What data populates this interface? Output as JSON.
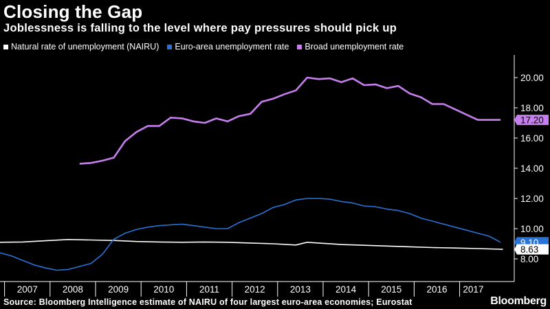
{
  "header": {
    "title": "Closing the Gap",
    "subtitle": "Joblessness is falling to the level where pay pressures should pick up"
  },
  "footer": {
    "source": "Source: Bloomberg Intelligence estimate of NAIRU of four largest euro-area economies; Eurostat",
    "brand": "Bloomberg"
  },
  "chart_data": {
    "type": "line",
    "title": "Closing the Gap",
    "subtitle": "Joblessness is falling to the level where pay pressures should pick up",
    "xlabel": "",
    "ylabel": "",
    "x_range": [
      2006,
      2017.3
    ],
    "ylim": [
      6.5,
      21.5
    ],
    "y_ticks": [
      8.0,
      10.0,
      12.0,
      14.0,
      16.0,
      18.0,
      20.0
    ],
    "y_tick_labels": [
      "8.00",
      "10.00",
      "12.00",
      "14.00",
      "16.00",
      "18.00",
      "20.00"
    ],
    "x_tick_labels": [
      "2007",
      "2008",
      "2009",
      "2010",
      "2011",
      "2012",
      "2013",
      "2014",
      "2015",
      "2016",
      "2017"
    ],
    "x_tick_centers": [
      2006.6,
      2007.6,
      2008.6,
      2009.6,
      2010.6,
      2011.6,
      2012.6,
      2013.6,
      2014.6,
      2015.6,
      2016.4
    ],
    "x_dividers": [
      2006.1,
      2007.1,
      2008.1,
      2009.1,
      2010.1,
      2011.1,
      2012.1,
      2013.1,
      2014.1,
      2015.1,
      2016.1
    ],
    "grid": false,
    "legend_position": "top-left",
    "series": [
      {
        "name": "Natural rate of unemployment (NAIRU)",
        "color": "#ffffff",
        "end_label": "8.63",
        "x": [
          2006.0,
          2006.5,
          2007.0,
          2007.5,
          2008.0,
          2008.5,
          2009.0,
          2009.5,
          2010.0,
          2010.5,
          2011.0,
          2011.5,
          2012.0,
          2012.5,
          2012.75,
          2013.0,
          2013.5,
          2014.0,
          2014.5,
          2015.0,
          2015.5,
          2016.0,
          2016.5,
          2017.05
        ],
        "values": [
          9.1,
          9.12,
          9.2,
          9.28,
          9.25,
          9.22,
          9.15,
          9.12,
          9.1,
          9.12,
          9.1,
          9.05,
          9.0,
          8.92,
          9.1,
          9.05,
          8.95,
          8.9,
          8.85,
          8.8,
          8.75,
          8.72,
          8.68,
          8.63
        ]
      },
      {
        "name": "Euro-area unemployment rate",
        "color": "#2a73d6",
        "end_label": "9.10",
        "x": [
          2006.0,
          2006.25,
          2006.5,
          2006.75,
          2007.0,
          2007.25,
          2007.5,
          2007.75,
          2008.0,
          2008.25,
          2008.5,
          2008.75,
          2009.0,
          2009.25,
          2009.5,
          2009.75,
          2010.0,
          2010.25,
          2010.5,
          2010.75,
          2011.0,
          2011.25,
          2011.5,
          2011.75,
          2012.0,
          2012.25,
          2012.5,
          2012.75,
          2013.0,
          2013.25,
          2013.5,
          2013.75,
          2014.0,
          2014.25,
          2014.5,
          2014.75,
          2015.0,
          2015.25,
          2015.5,
          2015.75,
          2016.0,
          2016.25,
          2016.5,
          2016.75,
          2017.0
        ],
        "values": [
          8.4,
          8.2,
          7.9,
          7.6,
          7.4,
          7.25,
          7.3,
          7.5,
          7.7,
          8.3,
          9.3,
          9.7,
          9.95,
          10.1,
          10.2,
          10.25,
          10.3,
          10.2,
          10.1,
          10.0,
          10.0,
          10.4,
          10.7,
          11.0,
          11.4,
          11.6,
          11.9,
          12.0,
          12.0,
          11.95,
          11.8,
          11.7,
          11.5,
          11.45,
          11.3,
          11.2,
          11.0,
          10.7,
          10.5,
          10.3,
          10.1,
          9.9,
          9.7,
          9.5,
          9.1
        ]
      },
      {
        "name": "Broad unemployment rate",
        "color": "#c77ff0",
        "end_label": "17.20",
        "x": [
          2007.75,
          2008.0,
          2008.25,
          2008.5,
          2008.75,
          2009.0,
          2009.25,
          2009.5,
          2009.75,
          2010.0,
          2010.25,
          2010.5,
          2010.75,
          2011.0,
          2011.25,
          2011.5,
          2011.75,
          2012.0,
          2012.25,
          2012.5,
          2012.75,
          2013.0,
          2013.25,
          2013.5,
          2013.75,
          2014.0,
          2014.25,
          2014.5,
          2014.75,
          2015.0,
          2015.25,
          2015.5,
          2015.75,
          2016.0,
          2016.25,
          2016.5,
          2016.75,
          2017.0
        ],
        "values": [
          14.3,
          14.35,
          14.5,
          14.7,
          15.8,
          16.4,
          16.8,
          16.8,
          17.35,
          17.3,
          17.1,
          17.0,
          17.3,
          17.1,
          17.45,
          17.6,
          18.4,
          18.6,
          18.9,
          19.15,
          20.0,
          19.9,
          19.95,
          19.7,
          19.95,
          19.5,
          19.55,
          19.3,
          19.45,
          18.95,
          18.7,
          18.25,
          18.25,
          17.9,
          17.55,
          17.2,
          17.2,
          17.2
        ]
      }
    ]
  }
}
